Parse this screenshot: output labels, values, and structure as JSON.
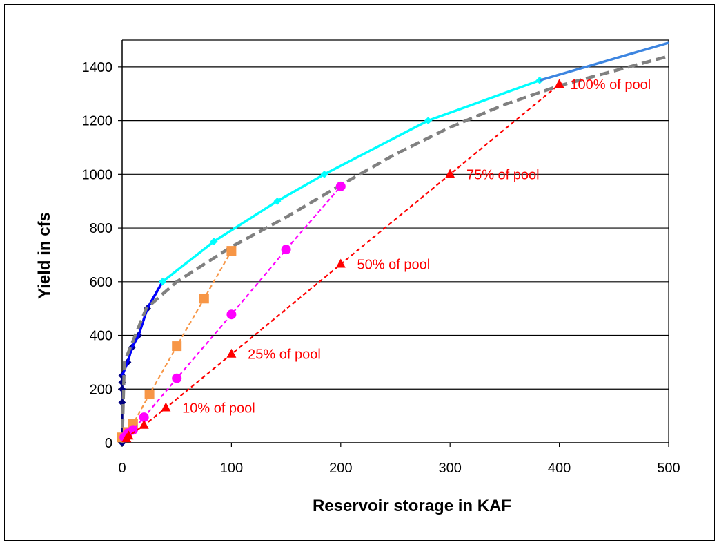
{
  "chart_data": {
    "type": "line",
    "title": "",
    "xlabel": "Reservoir storage in KAF",
    "ylabel": "Yield in cfs",
    "xlim": [
      0,
      500
    ],
    "ylim": [
      0,
      1500
    ],
    "x_ticks": [
      "0",
      "100",
      "200",
      "300",
      "400",
      "500"
    ],
    "y_ticks": [
      "0",
      "200",
      "400",
      "600",
      "800",
      "1000",
      "1200",
      "1400"
    ],
    "grid": "horizontal",
    "legend": "none",
    "series": [
      {
        "color": "#000080",
        "line": "solid",
        "marker": "diamond",
        "points": [
          [
            0,
            0
          ],
          [
            0,
            150
          ],
          [
            0,
            200
          ],
          [
            0,
            225
          ],
          [
            0,
            250
          ],
          [
            5,
            300
          ],
          [
            9,
            355
          ],
          [
            15,
            400
          ],
          [
            23,
            500
          ],
          [
            37,
            600
          ]
        ]
      },
      {
        "color": "#0000ff",
        "line": "solid",
        "marker": "none",
        "points": [
          [
            0,
            250
          ],
          [
            5,
            300
          ],
          [
            9,
            355
          ],
          [
            15,
            400
          ],
          [
            23,
            500
          ],
          [
            37,
            600
          ]
        ]
      },
      {
        "color": "#00ffff",
        "line": "solid",
        "marker": "diamond",
        "points": [
          [
            37,
            600
          ],
          [
            84,
            750
          ],
          [
            142,
            900
          ],
          [
            185,
            1000
          ],
          [
            280,
            1200
          ],
          [
            382,
            1350
          ]
        ]
      },
      {
        "color": "#3d85e0",
        "line": "solid",
        "marker": "none",
        "points": [
          [
            382,
            1350
          ],
          [
            500,
            1490
          ]
        ]
      },
      {
        "color": "#808080",
        "line": "dashed",
        "marker": "none",
        "points": [
          [
            0,
            0
          ],
          [
            2,
            300
          ],
          [
            12,
            400
          ],
          [
            22,
            500
          ],
          [
            50,
            600
          ],
          [
            100,
            730
          ],
          [
            150,
            840
          ],
          [
            200,
            960
          ],
          [
            250,
            1075
          ],
          [
            300,
            1175
          ],
          [
            350,
            1260
          ],
          [
            400,
            1330
          ],
          [
            450,
            1385
          ],
          [
            500,
            1440
          ]
        ]
      },
      {
        "color": "#f79646",
        "line": "dashed",
        "marker": "square",
        "points": [
          [
            0,
            20
          ],
          [
            5,
            40
          ],
          [
            10,
            70
          ],
          [
            25,
            180
          ],
          [
            50,
            360
          ],
          [
            75,
            537
          ],
          [
            100,
            715
          ]
        ]
      },
      {
        "color": "#ff00ff",
        "line": "dashed",
        "marker": "circle",
        "points": [
          [
            2,
            20
          ],
          [
            5,
            35
          ],
          [
            10,
            48
          ],
          [
            20,
            95
          ],
          [
            50,
            240
          ],
          [
            100,
            478
          ],
          [
            150,
            720
          ],
          [
            200,
            955
          ]
        ]
      },
      {
        "color": "#ff0000",
        "line": "dashed",
        "marker": "triangle",
        "points": [
          [
            4,
            15
          ],
          [
            6,
            25
          ],
          [
            20,
            65
          ],
          [
            40,
            130
          ],
          [
            100,
            330
          ],
          [
            200,
            665
          ],
          [
            300,
            1000
          ],
          [
            400,
            1335
          ]
        ]
      }
    ],
    "annotations": [
      {
        "text": "100% of pool",
        "x": 410,
        "y": 1335,
        "color": "#ff0000"
      },
      {
        "text": "75% of pool",
        "x": 315,
        "y": 1000,
        "color": "#ff0000"
      },
      {
        "text": "50% of pool",
        "x": 215,
        "y": 665,
        "color": "#ff0000"
      },
      {
        "text": "25% of pool",
        "x": 115,
        "y": 330,
        "color": "#ff0000"
      },
      {
        "text": "10% of pool",
        "x": 55,
        "y": 130,
        "color": "#ff0000"
      }
    ]
  }
}
